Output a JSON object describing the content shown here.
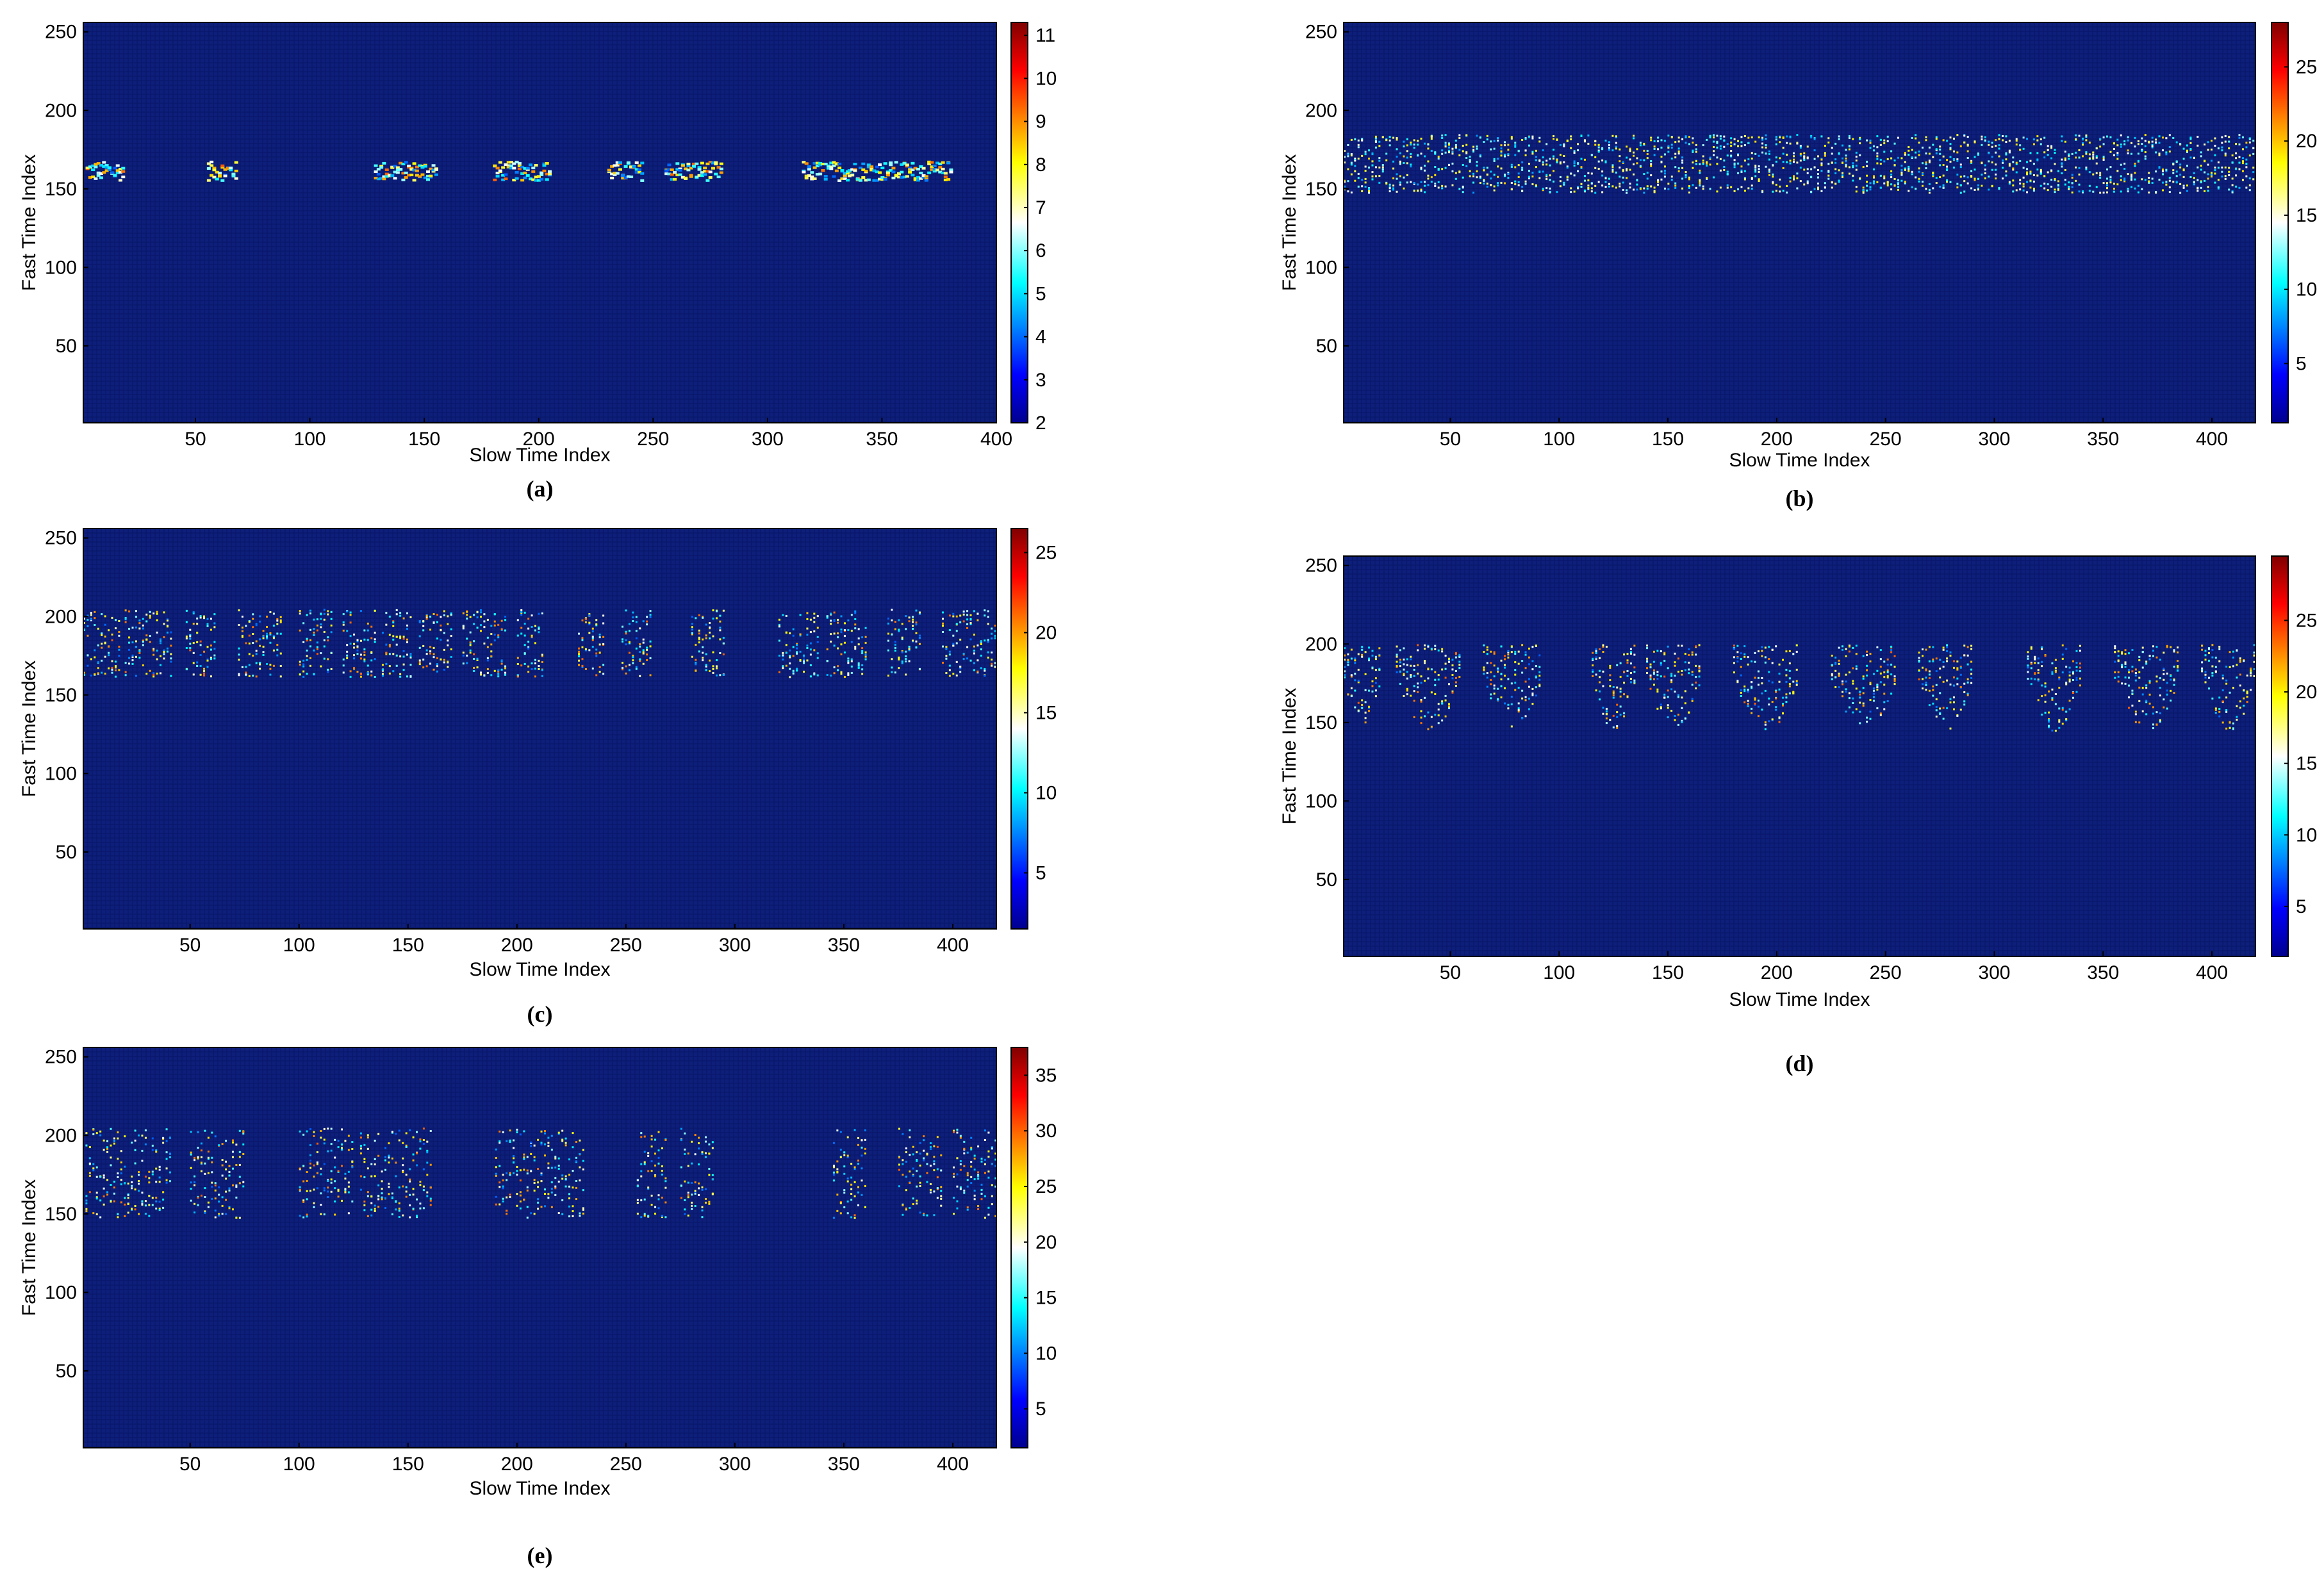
{
  "colormap": [
    "#00008f",
    "#0000ff",
    "#00ffff",
    "#ffffff",
    "#ffff00",
    "#ff0000",
    "#800000"
  ],
  "background_color": "#0d1f7a",
  "chart_data": [
    {
      "type": "heatmap",
      "panel_label": "(a)",
      "xlabel": "Slow Time Index",
      "ylabel": "Fast Time Index",
      "xlim": [
        1,
        400
      ],
      "ylim": [
        1,
        256
      ],
      "xticks": [
        50,
        100,
        150,
        200,
        250,
        300,
        350,
        400
      ],
      "yticks": [
        50,
        100,
        150,
        200,
        250
      ],
      "colorbar_range": [
        2,
        11.3
      ],
      "colorbar_ticks": [
        2,
        3,
        4,
        5,
        6,
        7,
        8,
        9,
        10,
        11
      ],
      "pattern": "streaks",
      "band": [
        150,
        172
      ],
      "events": [
        [
          2,
          18
        ],
        [
          55,
          68
        ],
        [
          128,
          155
        ],
        [
          180,
          205
        ],
        [
          230,
          245
        ],
        [
          255,
          280
        ],
        [
          315,
          335
        ],
        [
          335,
          380
        ]
      ]
    },
    {
      "type": "heatmap",
      "panel_label": "(b)",
      "xlabel": "Slow Time Index",
      "ylabel": "Fast Time Index",
      "xlim": [
        1,
        420
      ],
      "ylim": [
        1,
        256
      ],
      "xticks": [
        50,
        100,
        150,
        200,
        250,
        300,
        350,
        400
      ],
      "yticks": [
        50,
        100,
        150,
        200,
        250
      ],
      "colorbar_range": [
        1,
        28
      ],
      "colorbar_ticks": [
        5,
        10,
        15,
        20,
        25
      ],
      "pattern": "continuous",
      "band": [
        148,
        185
      ],
      "events": [
        [
          1,
          420
        ]
      ]
    },
    {
      "type": "heatmap",
      "panel_label": "(c)",
      "xlabel": "Slow Time Index",
      "ylabel": "Fast Time Index",
      "xlim": [
        1,
        420
      ],
      "ylim": [
        1,
        256
      ],
      "xticks": [
        50,
        100,
        150,
        200,
        250,
        300,
        350,
        400
      ],
      "yticks": [
        50,
        100,
        150,
        200,
        250
      ],
      "colorbar_range": [
        1.5,
        26.5
      ],
      "colorbar_ticks": [
        5,
        10,
        15,
        20,
        25
      ],
      "pattern": "blocks",
      "band": [
        162,
        205
      ],
      "events": [
        [
          1,
          18
        ],
        [
          20,
          42
        ],
        [
          48,
          62
        ],
        [
          72,
          92
        ],
        [
          100,
          115
        ],
        [
          120,
          135
        ],
        [
          138,
          152
        ],
        [
          155,
          170
        ],
        [
          175,
          195
        ],
        [
          200,
          212
        ],
        [
          228,
          240
        ],
        [
          248,
          262
        ],
        [
          280,
          295
        ],
        [
          320,
          338
        ],
        [
          342,
          360
        ],
        [
          370,
          385
        ],
        [
          395,
          420
        ]
      ]
    },
    {
      "type": "heatmap",
      "panel_label": "(d)",
      "xlabel": "Slow Time Index",
      "ylabel": "Fast Time Index",
      "xlim": [
        1,
        420
      ],
      "ylim": [
        1,
        256
      ],
      "xticks": [
        50,
        100,
        150,
        200,
        250,
        300,
        350,
        400
      ],
      "yticks": [
        50,
        100,
        150,
        200,
        250
      ],
      "colorbar_range": [
        1.5,
        29.5
      ],
      "colorbar_ticks": [
        5,
        10,
        15,
        20,
        25
      ],
      "pattern": "vshapes",
      "band": [
        145,
        200
      ],
      "events": [
        [
          1,
          18
        ],
        [
          25,
          55
        ],
        [
          65,
          92
        ],
        [
          115,
          135
        ],
        [
          140,
          165
        ],
        [
          180,
          210
        ],
        [
          225,
          255
        ],
        [
          265,
          290
        ],
        [
          315,
          340
        ],
        [
          355,
          385
        ],
        [
          395,
          420
        ]
      ]
    },
    {
      "type": "heatmap",
      "panel_label": "(e)",
      "xlabel": "Slow Time Index",
      "ylabel": "Fast Time Index",
      "xlim": [
        1,
        420
      ],
      "ylim": [
        1,
        256
      ],
      "xticks": [
        50,
        100,
        150,
        200,
        250,
        300,
        350,
        400
      ],
      "yticks": [
        50,
        100,
        150,
        200,
        250
      ],
      "colorbar_range": [
        1.5,
        37.5
      ],
      "colorbar_ticks": [
        5,
        10,
        15,
        20,
        25,
        30,
        35
      ],
      "pattern": "clusters",
      "band": [
        148,
        205
      ],
      "events": [
        [
          2,
          42
        ],
        [
          50,
          75
        ],
        [
          100,
          125
        ],
        [
          128,
          160
        ],
        [
          190,
          230
        ],
        [
          255,
          268
        ],
        [
          275,
          290
        ],
        [
          345,
          360
        ],
        [
          375,
          395
        ],
        [
          400,
          420
        ]
      ]
    }
  ]
}
